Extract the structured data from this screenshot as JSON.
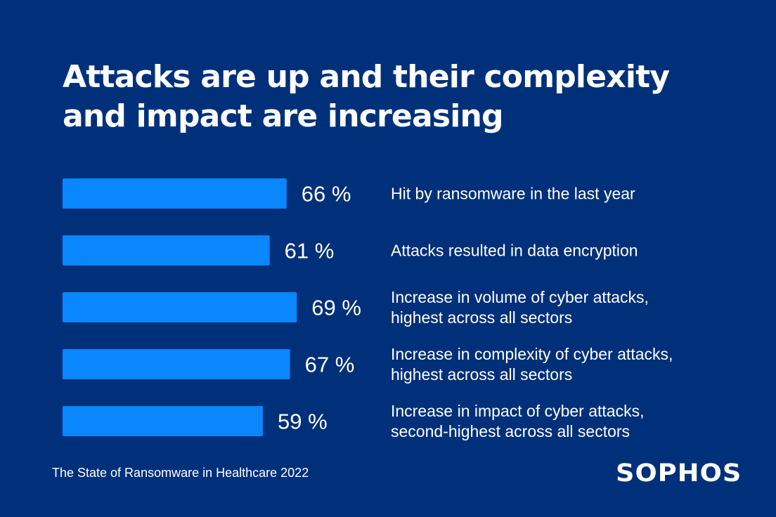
{
  "title": "Attacks are up and their complexity and impact are increasing",
  "source": "The State of Ransomware in Healthcare 2022",
  "brand": "SOPHOS",
  "colors": {
    "background": "#00307a",
    "bar": "#0a86ff",
    "text": "#ffffff"
  },
  "chart_data": {
    "type": "bar",
    "orientation": "horizontal",
    "unit": "%",
    "categories": [
      [
        "Hit by ransomware in the last year"
      ],
      [
        "Attacks resulted in data encryption"
      ],
      [
        "Increase in volume of cyber attacks,",
        "highest across all sectors"
      ],
      [
        "Increase in complexity of cyber attacks,",
        "highest across all sectors"
      ],
      [
        "Increase in impact of cyber attacks,",
        "second-highest across all sectors"
      ]
    ],
    "values": [
      66,
      61,
      69,
      67,
      59
    ],
    "value_labels": [
      "66 %",
      "61 %",
      "69 %",
      "67 %",
      "59 %"
    ],
    "grid": false,
    "legend": "none"
  }
}
